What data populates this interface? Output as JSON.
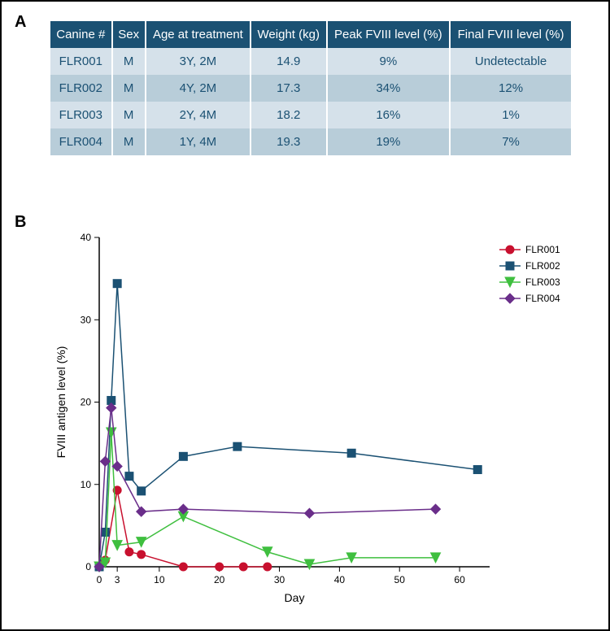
{
  "panelA": {
    "label": "A",
    "columns": [
      "Canine #",
      "Sex",
      "Age at treatment",
      "Weight (kg)",
      "Peak FVIII level (%)",
      "Final FVIII level (%)"
    ],
    "rows": [
      [
        "FLR001",
        "M",
        "3Y, 2M",
        "14.9",
        "9%",
        "Undetectable"
      ],
      [
        "FLR002",
        "M",
        "4Y, 2M",
        "17.3",
        "34%",
        "12%"
      ],
      [
        "FLR003",
        "M",
        "2Y, 4M",
        "18.2",
        "16%",
        "1%"
      ],
      [
        "FLR004",
        "M",
        "1Y, 4M",
        "19.3",
        "19%",
        "7%"
      ]
    ],
    "header_bg": "#1b5173",
    "header_fg": "#ffffff",
    "row_odd_bg": "#d5e1ea",
    "row_even_bg": "#b8cdd9",
    "cell_fg": "#1b5173"
  },
  "panelB": {
    "label": "B",
    "type": "line",
    "xlabel": "Day",
    "ylabel": "FVIII antigen level (%)",
    "label_fontsize": 14,
    "tick_fontsize": 12,
    "xlim": [
      0,
      65
    ],
    "ylim": [
      0,
      40
    ],
    "xticks": [
      0,
      3,
      10,
      20,
      30,
      40,
      50,
      60
    ],
    "yticks": [
      0,
      10,
      20,
      30,
      40
    ],
    "axis_color": "#000000",
    "background": "#ffffff",
    "legend_position": "right",
    "series": [
      {
        "name": "FLR001",
        "color": "#c8102e",
        "marker": "circle",
        "marker_size": 5,
        "line_width": 1.5,
        "data": [
          [
            0,
            0
          ],
          [
            1,
            0.8
          ],
          [
            3,
            9.3
          ],
          [
            5,
            1.8
          ],
          [
            7,
            1.5
          ],
          [
            14,
            0
          ],
          [
            20,
            0
          ],
          [
            24,
            0
          ],
          [
            28,
            0
          ]
        ]
      },
      {
        "name": "FLR002",
        "color": "#1b5173",
        "marker": "square",
        "marker_size": 5,
        "line_width": 1.5,
        "data": [
          [
            0,
            0
          ],
          [
            1,
            4.2
          ],
          [
            2,
            20.2
          ],
          [
            3,
            34.4
          ],
          [
            5,
            11
          ],
          [
            7,
            9.2
          ],
          [
            14,
            13.4
          ],
          [
            23,
            14.6
          ],
          [
            42,
            13.8
          ],
          [
            63,
            11.8
          ]
        ]
      },
      {
        "name": "FLR003",
        "color": "#3fbf3f",
        "marker": "triangle-down",
        "marker_size": 6,
        "line_width": 1.5,
        "data": [
          [
            0,
            0
          ],
          [
            1,
            0.5
          ],
          [
            2,
            16.3
          ],
          [
            3,
            2.6
          ],
          [
            7,
            3
          ],
          [
            14,
            6.1
          ],
          [
            28,
            1.8
          ],
          [
            35,
            0.3
          ],
          [
            42,
            1.1
          ],
          [
            56,
            1.1
          ]
        ]
      },
      {
        "name": "FLR004",
        "color": "#6a2e8a",
        "marker": "diamond",
        "marker_size": 6,
        "line_width": 1.5,
        "data": [
          [
            0,
            0
          ],
          [
            1,
            12.8
          ],
          [
            2,
            19.3
          ],
          [
            3,
            12.2
          ],
          [
            7,
            6.7
          ],
          [
            14,
            7
          ],
          [
            35,
            6.5
          ],
          [
            56,
            7
          ]
        ]
      }
    ]
  }
}
